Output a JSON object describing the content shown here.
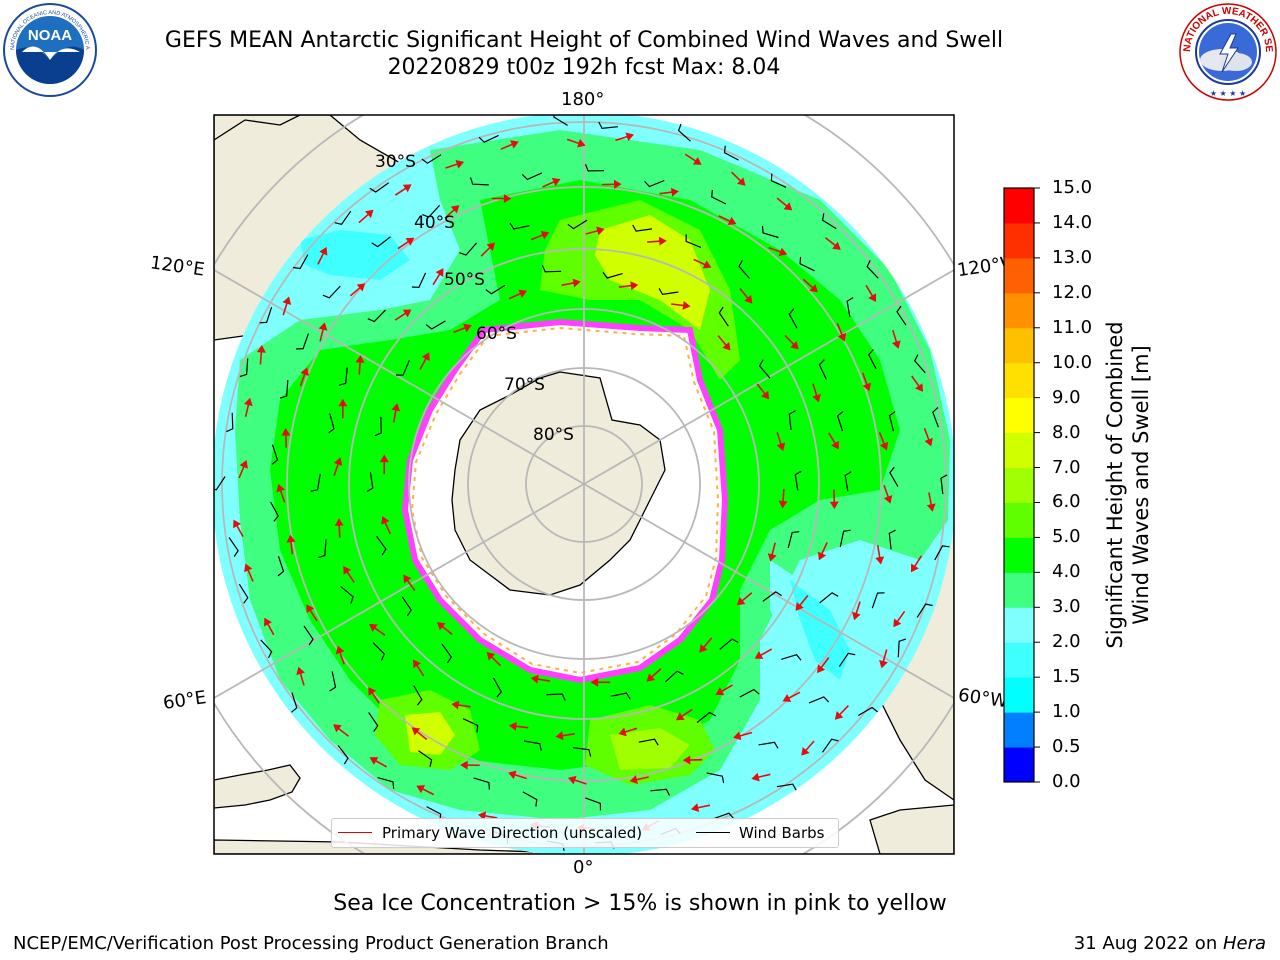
{
  "title": {
    "line1": "GEFS MEAN Antarctic Significant Height of Combined Wind Waves and Swell",
    "line2": "20220829 t00z 192h fcst   Max: 8.04"
  },
  "logos": {
    "left": {
      "name": "noaa-logo",
      "text": "NOAA",
      "ring_text": "NATIONAL OCEANIC AND ATMOSPHERIC ADMINISTRATION · U.S. DEPARTMENT OF COMMERCE"
    },
    "right": {
      "name": "nws-logo",
      "ring_text": "NATIONAL WEATHER SERVICE"
    }
  },
  "map": {
    "projection": "south-polar-stereographic",
    "longitude_labels": {
      "top": "180°",
      "bottom": "0°",
      "upper_left": "120°E",
      "upper_right": "120°W",
      "lower_left": "60°E",
      "lower_right": "60°W"
    },
    "latitude_labels": [
      "30°S",
      "40°S",
      "50°S",
      "60°S",
      "70°S",
      "80°S"
    ],
    "legend": {
      "wave_direction": "Primary Wave Direction (unscaled)",
      "wind_barbs": "Wind Barbs",
      "wave_direction_color": "#e00000",
      "wind_barb_color": "#000000"
    }
  },
  "colorbar": {
    "label_line1": "Significant Height of Combined",
    "label_line2": "Wind Waves and Swell [m]",
    "ticks": [
      "15.0",
      "14.0",
      "13.0",
      "12.0",
      "11.0",
      "10.0",
      "9.0",
      "8.0",
      "7.0",
      "6.0",
      "5.0",
      "4.0",
      "3.0",
      "2.0",
      "1.5",
      "1.0",
      "0.5",
      "0.0"
    ],
    "colors_bottom_to_top": [
      "#0000ff",
      "#0080ff",
      "#00ffff",
      "#40ffff",
      "#80ffff",
      "#40ff80",
      "#00ff00",
      "#60ff00",
      "#a0ff00",
      "#d0ff00",
      "#ffff00",
      "#ffe000",
      "#ffc000",
      "#ff9000",
      "#ff6000",
      "#ff3000",
      "#ff0000"
    ]
  },
  "ice_note": "Sea Ice Concentration > 15% is shown in pink to yellow",
  "footer": {
    "left": "NCEP/EMC/Verification Post Processing Product Generation Branch",
    "right_date": "31 Aug 2022 on ",
    "right_host": "Hera"
  }
}
